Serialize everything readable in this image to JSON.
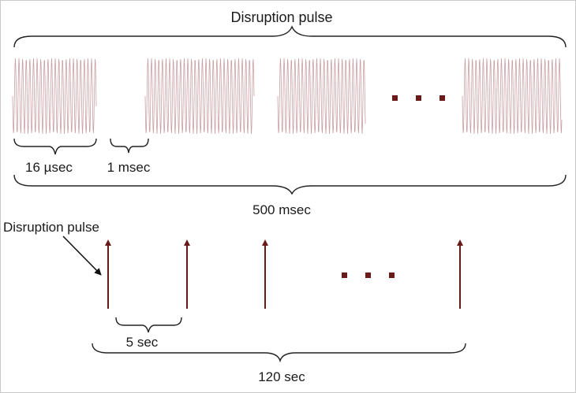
{
  "top_panel": {
    "title": "Disruption pulse",
    "burst_label": "16 µsec",
    "gap_label": "1 msec",
    "total_label": "500 msec",
    "wave_color": "#c9a0a4",
    "dots_color": "#6b1a1a"
  },
  "bottom_panel": {
    "pointer_label": "Disruption pulse",
    "interval_label": "5 sec",
    "total_label": "120 sec",
    "pulse_color": "#6b1a1a"
  }
}
